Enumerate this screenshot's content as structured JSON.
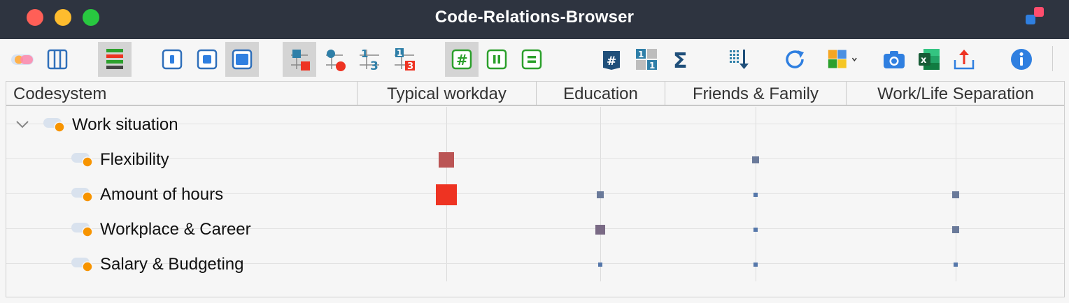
{
  "window": {
    "title": "Code-Relations-Browser"
  },
  "toolbar": {
    "buttons": [
      {
        "name": "code-color-toggle-icon"
      },
      {
        "name": "columns-view-icon"
      },
      {
        "name": "heat-color-bars-icon",
        "active": true
      },
      {
        "name": "small-symbol-icon"
      },
      {
        "name": "medium-symbol-icon"
      },
      {
        "name": "large-symbol-icon",
        "active": true
      },
      {
        "name": "squares-display-icon",
        "active": true
      },
      {
        "name": "circles-display-icon"
      },
      {
        "name": "numbers-display-icon"
      },
      {
        "name": "numbers-squares-display-icon"
      },
      {
        "name": "intersection-mode-icon",
        "active": true
      },
      {
        "name": "near-mode-icon"
      },
      {
        "name": "equal-mode-icon"
      },
      {
        "name": "number-symbol-icon"
      },
      {
        "name": "grid-numbers-icon"
      },
      {
        "name": "sum-icon"
      },
      {
        "name": "sort-down-icon"
      },
      {
        "name": "refresh-icon"
      },
      {
        "name": "puzzle-options-icon"
      },
      {
        "name": "camera-icon"
      },
      {
        "name": "excel-export-icon"
      },
      {
        "name": "export-upload-icon"
      },
      {
        "name": "info-icon"
      }
    ]
  },
  "table": {
    "header": {
      "codesystem_label": "Codesystem",
      "columns": [
        "Typical workday",
        "Education",
        "Friends & Family",
        "Work/Life Separation"
      ]
    },
    "rows": [
      {
        "label": "Work situation",
        "level": 0,
        "expanded": true,
        "cells": [
          null,
          null,
          null,
          null
        ]
      },
      {
        "label": "Flexibility",
        "level": 1,
        "cells": [
          {
            "size": "large",
            "color": "#bb5555"
          },
          null,
          {
            "size": "small",
            "color": "#6a7a9a"
          },
          null
        ]
      },
      {
        "label": "Amount of hours",
        "level": 1,
        "cells": [
          {
            "size": "largest",
            "color": "#ee3322"
          },
          {
            "size": "small",
            "color": "#6a7a9a"
          },
          {
            "size": "tiny",
            "color": "#5577aa"
          },
          {
            "size": "small",
            "color": "#6a7a9a"
          }
        ]
      },
      {
        "label": "Workplace & Career",
        "level": 1,
        "cells": [
          null,
          {
            "size": "medium",
            "color": "#7a6a85"
          },
          {
            "size": "tiny",
            "color": "#5577aa"
          },
          {
            "size": "small",
            "color": "#6a7a9a"
          }
        ]
      },
      {
        "label": "Salary & Budgeting",
        "level": 1,
        "cells": [
          null,
          {
            "size": "tiny",
            "color": "#5577aa"
          },
          {
            "size": "tiny",
            "color": "#5577aa"
          },
          {
            "size": "tiny",
            "color": "#5577aa"
          }
        ]
      }
    ]
  }
}
